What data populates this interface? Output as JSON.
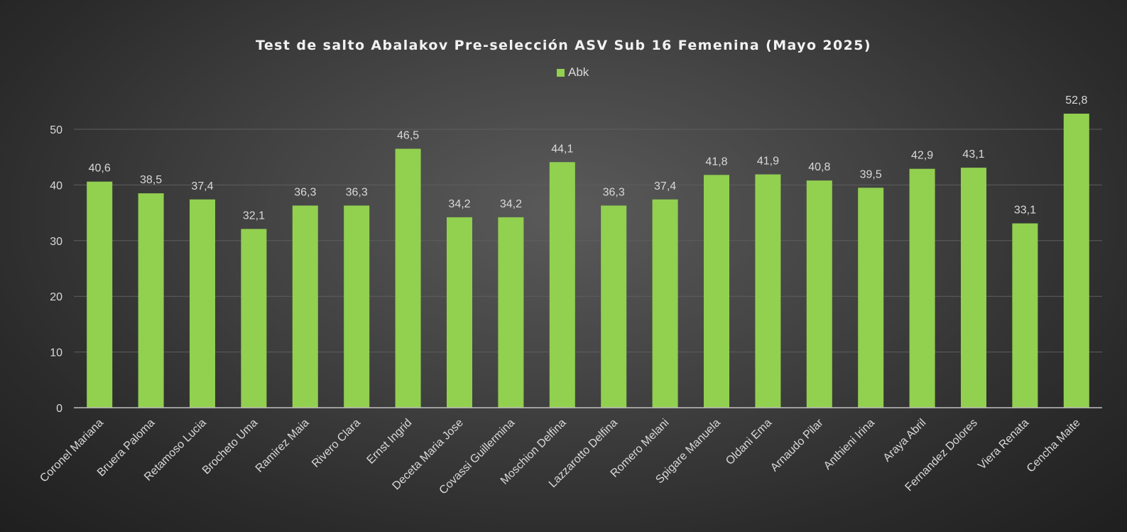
{
  "chart_data": {
    "type": "bar",
    "title": "Test de salto Abalakov Pre-selección ASV Sub 16 Femenina (Mayo 2025)",
    "xlabel": "",
    "ylabel": "",
    "ylim": [
      0,
      50
    ],
    "yticks": [
      "0",
      "10",
      "20",
      "30",
      "40",
      "50"
    ],
    "grid": true,
    "legend_position": "top",
    "categories": [
      "Coronel Mariana",
      "Bruera Paloma",
      "Retamoso Lucia",
      "Brocheto Uma",
      "Ramirez Maia",
      "Rivero Clara",
      "Ernst Ingrid",
      "Deceta Maria Jose",
      "Covassi Guillermina",
      "Moschion Delfina",
      "Lazzarotto Delfina",
      "Romero Melani",
      "Spigare Manuela",
      "Oldani Ema",
      "Arnaudo Pilar",
      "Anthieni Irina",
      "Araya Abril",
      "Fernandez Dolores",
      "Viera Renata",
      "Cencha Maite"
    ],
    "series": [
      {
        "name": "Abk",
        "color": "#92d050",
        "values": [
          40.6,
          38.5,
          37.4,
          32.1,
          36.3,
          36.3,
          46.5,
          34.2,
          34.2,
          44.1,
          36.3,
          37.4,
          41.8,
          41.9,
          40.8,
          39.5,
          42.9,
          43.1,
          33.1,
          52.8
        ],
        "labels": [
          "40,6",
          "38,5",
          "37,4",
          "32,1",
          "36,3",
          "36,3",
          "46,5",
          "34,2",
          "34,2",
          "44,1",
          "36,3",
          "37,4",
          "41,8",
          "41,9",
          "40,8",
          "39,5",
          "42,9",
          "43,1",
          "33,1",
          "52,8"
        ]
      }
    ]
  }
}
